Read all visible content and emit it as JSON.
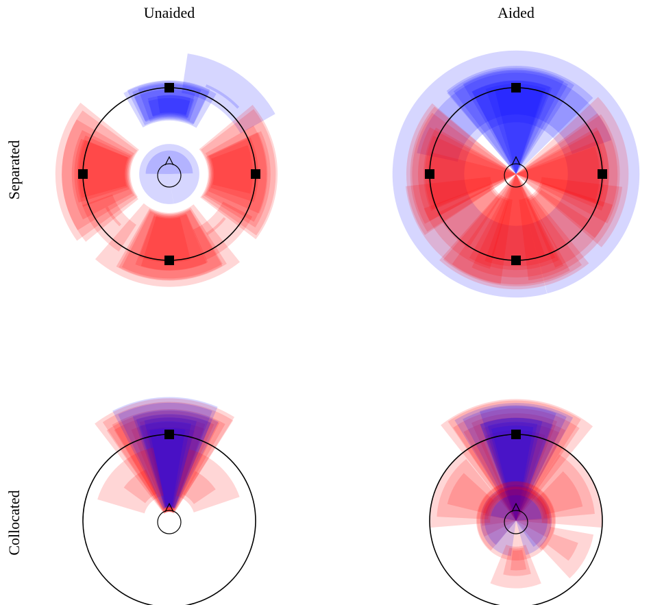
{
  "column_titles": [
    "Unaided",
    "Aided"
  ],
  "row_titles": [
    "Separated",
    "Collocated"
  ],
  "colors": {
    "talker_a": "#ff0000",
    "talker_b": "#0000ff",
    "marker": "#000000"
  },
  "chart_data": [
    {
      "type": "polar-density",
      "column": "Unaided",
      "row": "Separated",
      "loudspeakers": [
        0,
        90,
        180,
        270
      ],
      "lobes": [
        {
          "talker": "b",
          "center": 0,
          "spread": 30,
          "r": [
            0.62,
            1.12
          ],
          "density": 8
        },
        {
          "talker": "b",
          "center": 35,
          "spread": 28,
          "r": [
            0.95,
            1.35
          ],
          "density": 2
        },
        {
          "talker": "b",
          "center": 0,
          "spread": 180,
          "r": [
            0.0,
            0.36
          ],
          "density": 2
        },
        {
          "talker": "a",
          "center": 90,
          "spread": 38,
          "r": [
            0.45,
            1.3
          ],
          "density": 7
        },
        {
          "talker": "a",
          "center": 270,
          "spread": 38,
          "r": [
            0.45,
            1.3
          ],
          "density": 7
        },
        {
          "talker": "a",
          "center": 180,
          "spread": 38,
          "r": [
            0.45,
            1.3
          ],
          "density": 7
        },
        {
          "talker": "a",
          "center": 140,
          "spread": 20,
          "r": [
            0.7,
            1.05
          ],
          "density": 2
        },
        {
          "talker": "a",
          "center": 230,
          "spread": 20,
          "r": [
            0.7,
            1.05
          ],
          "density": 2
        }
      ]
    },
    {
      "type": "polar-density",
      "column": "Aided",
      "row": "Separated",
      "loudspeakers": [
        0,
        90,
        180,
        270
      ],
      "lobes": [
        {
          "talker": "b",
          "center": 0,
          "spread": 180,
          "r": [
            0.6,
            1.5
          ],
          "density": 2
        },
        {
          "talker": "b",
          "center": 0,
          "spread": 40,
          "r": [
            0.0,
            1.3
          ],
          "density": 8
        },
        {
          "talker": "a",
          "center": 90,
          "spread": 40,
          "r": [
            0.0,
            1.25
          ],
          "density": 7
        },
        {
          "talker": "a",
          "center": 270,
          "spread": 40,
          "r": [
            0.0,
            1.25
          ],
          "density": 7
        },
        {
          "talker": "a",
          "center": 180,
          "spread": 40,
          "r": [
            0.0,
            1.35
          ],
          "density": 7
        },
        {
          "talker": "a",
          "center": 135,
          "spread": 35,
          "r": [
            0.3,
            1.3
          ],
          "density": 3
        },
        {
          "talker": "a",
          "center": 225,
          "spread": 35,
          "r": [
            0.3,
            1.3
          ],
          "density": 3
        }
      ]
    },
    {
      "type": "polar-density",
      "column": "Unaided",
      "row": "Collocated",
      "loudspeakers": [
        0
      ],
      "lobes": [
        {
          "talker": "a",
          "center": 0,
          "spread": 38,
          "r": [
            0.1,
            1.42
          ],
          "density": 8
        },
        {
          "talker": "b",
          "center": 0,
          "spread": 26,
          "r": [
            0.15,
            1.4
          ],
          "density": 7
        },
        {
          "talker": "a",
          "center": 40,
          "spread": 30,
          "r": [
            0.3,
            0.85
          ],
          "density": 2
        },
        {
          "talker": "a",
          "center": 320,
          "spread": 30,
          "r": [
            0.3,
            0.85
          ],
          "density": 2
        }
      ]
    },
    {
      "type": "polar-density",
      "column": "Aided",
      "row": "Collocated",
      "loudspeakers": [
        0
      ],
      "lobes": [
        {
          "talker": "a",
          "center": 0,
          "spread": 40,
          "r": [
            0.0,
            1.4
          ],
          "density": 7
        },
        {
          "talker": "b",
          "center": 0,
          "spread": 28,
          "r": [
            0.0,
            1.4
          ],
          "density": 7
        },
        {
          "talker": "a",
          "center": 0,
          "spread": 180,
          "r": [
            0.0,
            0.48
          ],
          "density": 5
        },
        {
          "talker": "b",
          "center": 0,
          "spread": 180,
          "r": [
            0.0,
            0.4
          ],
          "density": 3
        },
        {
          "talker": "a",
          "center": 60,
          "spread": 35,
          "r": [
            0.3,
            1.05
          ],
          "density": 3
        },
        {
          "talker": "a",
          "center": 300,
          "spread": 35,
          "r": [
            0.3,
            1.05
          ],
          "density": 3
        },
        {
          "talker": "a",
          "center": 180,
          "spread": 22,
          "r": [
            0.3,
            0.75
          ],
          "density": 3
        },
        {
          "talker": "a",
          "center": 120,
          "spread": 20,
          "r": [
            0.4,
            0.95
          ],
          "density": 2
        }
      ]
    }
  ]
}
